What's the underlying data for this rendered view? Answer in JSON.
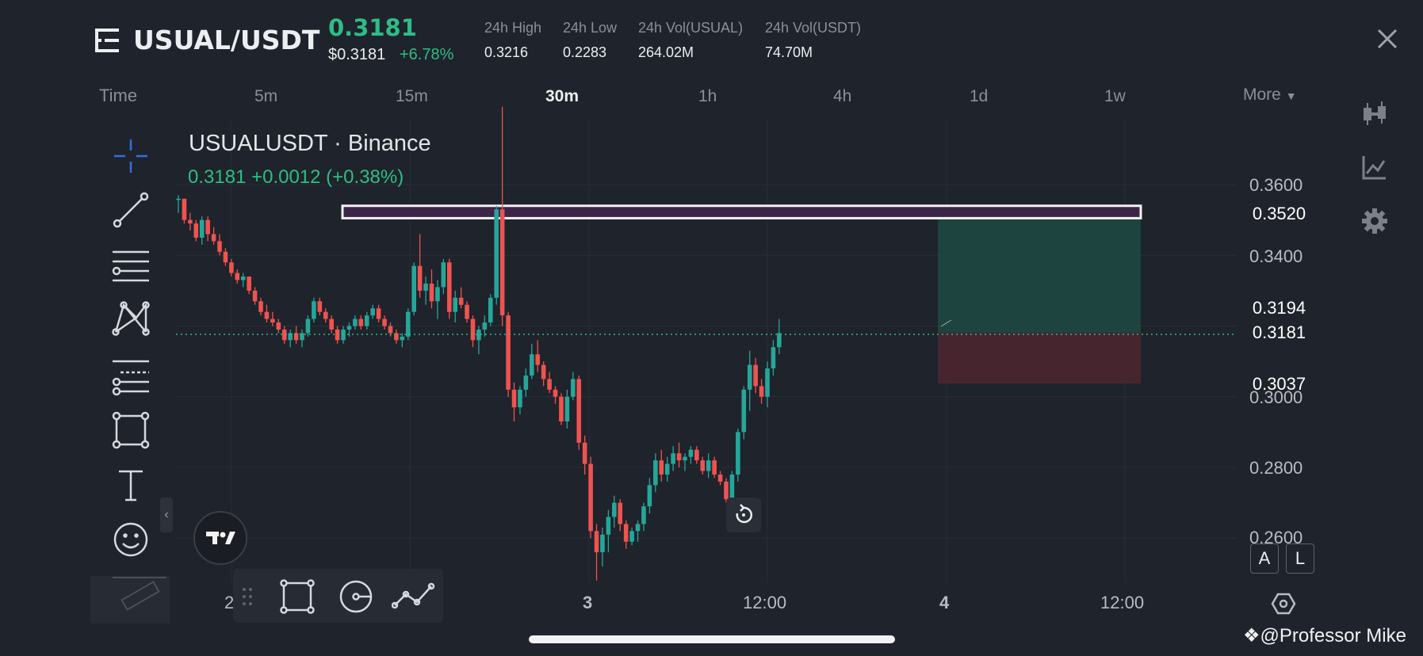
{
  "header": {
    "pair": "USUAL/USDT",
    "last_price": "0.3181",
    "usd_price": "$0.3181",
    "change_pct": "+6.78%",
    "stats": [
      {
        "label": "24h High",
        "value": "0.3216"
      },
      {
        "label": "24h Low",
        "value": "0.2283"
      },
      {
        "label": "24h Vol(USUAL)",
        "value": "264.02M"
      },
      {
        "label": "24h Vol(USDT)",
        "value": "74.70M"
      }
    ]
  },
  "timeframes": {
    "label": "Time",
    "items": [
      "5m",
      "15m",
      "30m",
      "1h",
      "4h",
      "1d",
      "1w"
    ],
    "active": "30m",
    "more": "More"
  },
  "chart": {
    "title": "USUALUSDT · Binance",
    "summary": "0.3181  +0.0012 (+0.38%)",
    "y_ticks": [
      "0.3600",
      "0.3400",
      "0.3000",
      "0.2800",
      "0.2600"
    ],
    "x_ticks": [
      "2",
      "3",
      "12:00",
      "4",
      "12:00"
    ],
    "price_tags": [
      {
        "value": "0.3520",
        "color": "#1a9b7b"
      },
      {
        "value": "0.3194",
        "color": "#6a6e77"
      },
      {
        "value": "0.3181",
        "color": "#24a06b"
      },
      {
        "value": "0.3037",
        "color": "#f23645"
      }
    ],
    "position": {
      "entry": 0.3181,
      "take_profit": 0.352,
      "stop_loss": 0.3037
    },
    "resistance_zone": [
      0.3505,
      0.354
    ]
  },
  "chart_data": {
    "type": "candlestick",
    "title": "USUALUSDT · Binance",
    "ylim": [
      0.2463,
      0.3836
    ],
    "candles": [
      [
        0.356,
        0.357,
        0.352,
        0.356
      ],
      [
        0.356,
        0.356,
        0.349,
        0.35
      ],
      [
        0.35,
        0.352,
        0.347,
        0.349
      ],
      [
        0.349,
        0.35,
        0.344,
        0.345
      ],
      [
        0.345,
        0.351,
        0.343,
        0.35
      ],
      [
        0.35,
        0.351,
        0.344,
        0.346
      ],
      [
        0.346,
        0.348,
        0.343,
        0.344
      ],
      [
        0.344,
        0.346,
        0.34,
        0.341
      ],
      [
        0.341,
        0.342,
        0.337,
        0.338
      ],
      [
        0.338,
        0.339,
        0.334,
        0.335
      ],
      [
        0.335,
        0.336,
        0.332,
        0.333
      ],
      [
        0.333,
        0.335,
        0.331,
        0.334
      ],
      [
        0.334,
        0.334,
        0.329,
        0.33
      ],
      [
        0.33,
        0.331,
        0.326,
        0.327
      ],
      [
        0.327,
        0.328,
        0.323,
        0.324
      ],
      [
        0.324,
        0.326,
        0.321,
        0.322
      ],
      [
        0.322,
        0.324,
        0.32,
        0.321
      ],
      [
        0.321,
        0.322,
        0.318,
        0.319
      ],
      [
        0.319,
        0.32,
        0.315,
        0.316
      ],
      [
        0.316,
        0.319,
        0.314,
        0.318
      ],
      [
        0.318,
        0.32,
        0.315,
        0.316
      ],
      [
        0.316,
        0.319,
        0.314,
        0.318
      ],
      [
        0.318,
        0.323,
        0.317,
        0.322
      ],
      [
        0.322,
        0.328,
        0.321,
        0.327
      ],
      [
        0.327,
        0.328,
        0.323,
        0.324
      ],
      [
        0.324,
        0.325,
        0.321,
        0.322
      ],
      [
        0.322,
        0.323,
        0.318,
        0.319
      ],
      [
        0.319,
        0.32,
        0.315,
        0.316
      ],
      [
        0.316,
        0.32,
        0.315,
        0.319
      ],
      [
        0.319,
        0.321,
        0.317,
        0.32
      ],
      [
        0.32,
        0.323,
        0.319,
        0.322
      ],
      [
        0.322,
        0.323,
        0.319,
        0.32
      ],
      [
        0.32,
        0.324,
        0.319,
        0.323
      ],
      [
        0.323,
        0.326,
        0.322,
        0.325
      ],
      [
        0.325,
        0.326,
        0.321,
        0.322
      ],
      [
        0.322,
        0.323,
        0.319,
        0.32
      ],
      [
        0.32,
        0.321,
        0.317,
        0.318
      ],
      [
        0.318,
        0.319,
        0.315,
        0.316
      ],
      [
        0.316,
        0.318,
        0.314,
        0.317
      ],
      [
        0.317,
        0.325,
        0.316,
        0.324
      ],
      [
        0.324,
        0.338,
        0.323,
        0.337
      ],
      [
        0.337,
        0.346,
        0.328,
        0.33
      ],
      [
        0.33,
        0.334,
        0.326,
        0.332
      ],
      [
        0.332,
        0.336,
        0.325,
        0.327
      ],
      [
        0.327,
        0.333,
        0.322,
        0.331
      ],
      [
        0.331,
        0.339,
        0.329,
        0.338
      ],
      [
        0.338,
        0.339,
        0.322,
        0.324
      ],
      [
        0.324,
        0.33,
        0.321,
        0.328
      ],
      [
        0.328,
        0.331,
        0.325,
        0.326
      ],
      [
        0.326,
        0.327,
        0.321,
        0.322
      ],
      [
        0.322,
        0.323,
        0.314,
        0.316
      ],
      [
        0.316,
        0.32,
        0.312,
        0.319
      ],
      [
        0.319,
        0.323,
        0.317,
        0.321
      ],
      [
        0.321,
        0.329,
        0.32,
        0.328
      ],
      [
        0.328,
        0.354,
        0.326,
        0.353
      ],
      [
        0.353,
        0.382,
        0.32,
        0.323
      ],
      [
        0.323,
        0.324,
        0.3,
        0.302
      ],
      [
        0.302,
        0.304,
        0.293,
        0.297
      ],
      [
        0.297,
        0.303,
        0.295,
        0.302
      ],
      [
        0.302,
        0.308,
        0.3,
        0.306
      ],
      [
        0.306,
        0.315,
        0.305,
        0.312
      ],
      [
        0.312,
        0.316,
        0.307,
        0.309
      ],
      [
        0.309,
        0.31,
        0.303,
        0.305
      ],
      [
        0.305,
        0.307,
        0.301,
        0.302
      ],
      [
        0.302,
        0.303,
        0.298,
        0.3
      ],
      [
        0.3,
        0.301,
        0.292,
        0.293
      ],
      [
        0.293,
        0.302,
        0.291,
        0.3
      ],
      [
        0.3,
        0.307,
        0.299,
        0.305
      ],
      [
        0.305,
        0.306,
        0.285,
        0.287
      ],
      [
        0.287,
        0.289,
        0.278,
        0.281
      ],
      [
        0.281,
        0.283,
        0.26,
        0.262
      ],
      [
        0.262,
        0.264,
        0.248,
        0.256
      ],
      [
        0.256,
        0.263,
        0.252,
        0.261
      ],
      [
        0.261,
        0.268,
        0.256,
        0.266
      ],
      [
        0.266,
        0.272,
        0.263,
        0.27
      ],
      [
        0.27,
        0.271,
        0.262,
        0.264
      ],
      [
        0.264,
        0.265,
        0.257,
        0.259
      ],
      [
        0.259,
        0.263,
        0.258,
        0.262
      ],
      [
        0.262,
        0.265,
        0.259,
        0.264
      ],
      [
        0.264,
        0.27,
        0.262,
        0.269
      ],
      [
        0.269,
        0.277,
        0.267,
        0.275
      ],
      [
        0.275,
        0.284,
        0.273,
        0.282
      ],
      [
        0.282,
        0.285,
        0.276,
        0.278
      ],
      [
        0.278,
        0.283,
        0.276,
        0.281
      ],
      [
        0.281,
        0.286,
        0.279,
        0.284
      ],
      [
        0.284,
        0.287,
        0.28,
        0.282
      ],
      [
        0.282,
        0.284,
        0.279,
        0.283
      ],
      [
        0.283,
        0.286,
        0.281,
        0.285
      ],
      [
        0.285,
        0.286,
        0.281,
        0.282
      ],
      [
        0.282,
        0.283,
        0.278,
        0.279
      ],
      [
        0.279,
        0.284,
        0.277,
        0.282
      ],
      [
        0.282,
        0.283,
        0.277,
        0.278
      ],
      [
        0.278,
        0.279,
        0.275,
        0.276
      ],
      [
        0.276,
        0.277,
        0.27,
        0.271
      ],
      [
        0.271,
        0.279,
        0.27,
        0.278
      ],
      [
        0.278,
        0.291,
        0.276,
        0.29
      ],
      [
        0.29,
        0.303,
        0.288,
        0.302
      ],
      [
        0.302,
        0.313,
        0.296,
        0.309
      ],
      [
        0.309,
        0.311,
        0.301,
        0.303
      ],
      [
        0.303,
        0.305,
        0.298,
        0.3
      ],
      [
        0.3,
        0.31,
        0.297,
        0.308
      ],
      [
        0.308,
        0.316,
        0.306,
        0.314
      ],
      [
        0.314,
        0.322,
        0.312,
        0.318
      ]
    ]
  },
  "tools": [
    "crosshair-icon",
    "trendline-icon",
    "horizontal-lines-icon",
    "pattern-icon",
    "fib-icon",
    "rectangle-icon",
    "text-icon",
    "emoji-icon"
  ],
  "bottom_tools": [
    "drag-handle-icon",
    "rectangle-tool-icon",
    "circle-tool-icon",
    "trend-tool-icon"
  ],
  "side_icons": [
    "candlestick-type-icon",
    "indicators-icon",
    "settings-icon"
  ],
  "buttons": {
    "auto": "A",
    "log": "L"
  },
  "watermark": "@Professor Mike"
}
